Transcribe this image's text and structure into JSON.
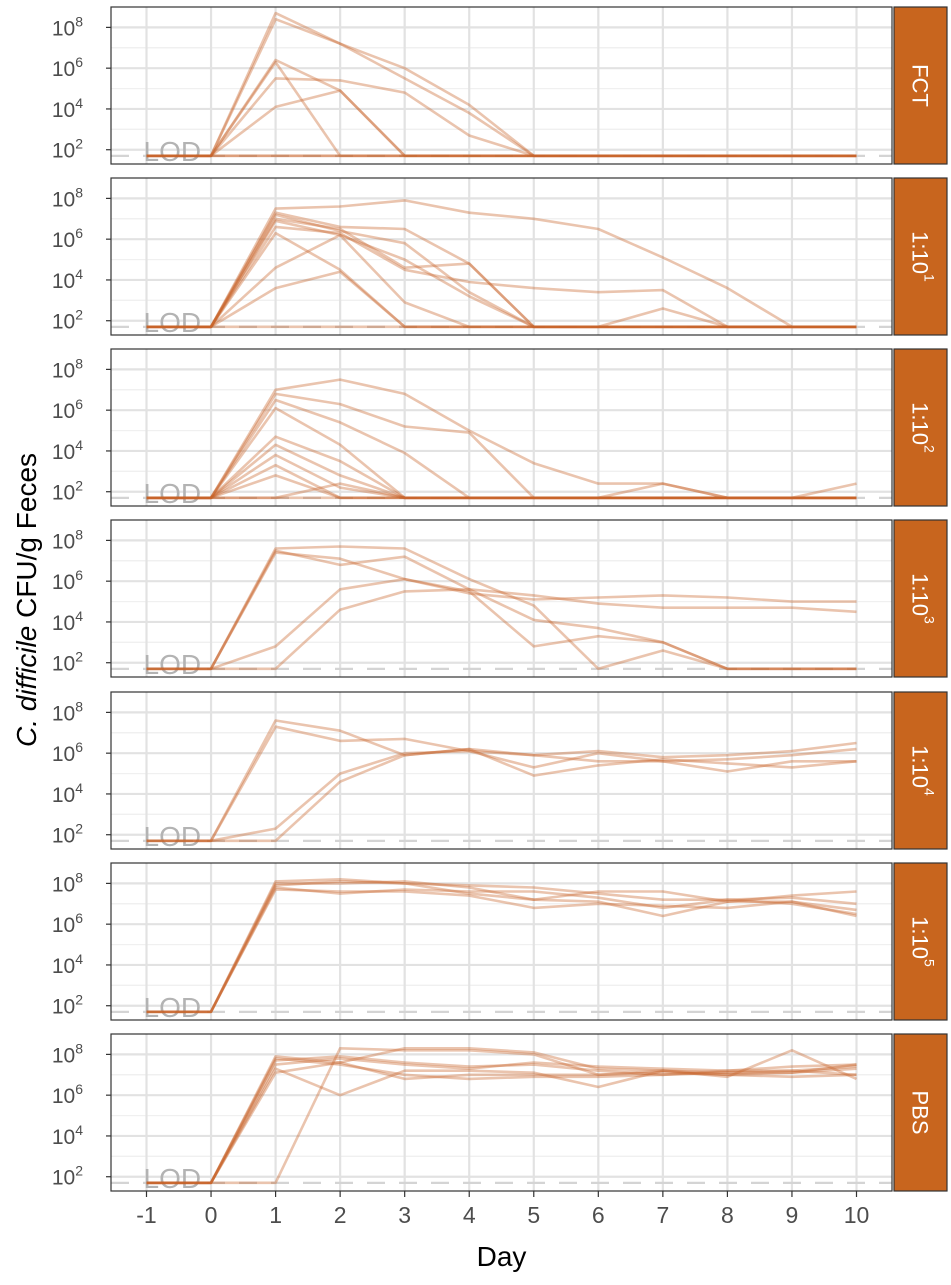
{
  "chart_data": {
    "type": "line",
    "ylabel_italic": "C. difficile",
    "ylabel_rest": "CFU/g Feces",
    "xlabel": "Day",
    "x_ticks": [
      -1,
      0,
      1,
      2,
      3,
      4,
      5,
      6,
      7,
      8,
      9,
      10
    ],
    "x_tick_labels": [
      "-1",
      "0",
      "1",
      "2",
      "3",
      "4",
      "5",
      "6",
      "7",
      "8",
      "9",
      "10"
    ],
    "xlim": [
      -1.55,
      10.55
    ],
    "y_scale": "log10",
    "ylim_log10": [
      1.3,
      9.0
    ],
    "y_ticks_log10": [
      2,
      4,
      6,
      8
    ],
    "y_tick_base": "10",
    "y_tick_exponents": [
      "2",
      "4",
      "6",
      "8"
    ],
    "lod_label": "LOD",
    "lod_log10": 1.7,
    "line_color": "#C8652A",
    "strip_color": "#C8651E",
    "panels": [
      {
        "label_base": "FCT",
        "label_sup": "",
        "series": [
          [
            1.7,
            1.7,
            8.7,
            7.2,
            6.0,
            4.2,
            1.7,
            1.7,
            1.7,
            1.7,
            1.7,
            1.7
          ],
          [
            1.7,
            1.7,
            8.4,
            7.2,
            5.5,
            3.8,
            1.7,
            1.7,
            1.7,
            1.7,
            1.7,
            1.7
          ],
          [
            1.7,
            1.7,
            6.4,
            4.9,
            1.7,
            1.7,
            1.7,
            1.7,
            1.7,
            1.7,
            1.7,
            1.7
          ],
          [
            1.7,
            1.7,
            6.3,
            1.7,
            1.7,
            1.7,
            1.7,
            1.7,
            1.7,
            1.7,
            1.7,
            1.7
          ],
          [
            1.7,
            1.7,
            5.5,
            5.4,
            4.8,
            2.7,
            1.7,
            1.7,
            1.7,
            1.7,
            1.7,
            1.7
          ],
          [
            1.7,
            1.7,
            4.1,
            4.9,
            1.7,
            1.7,
            1.7,
            1.7,
            1.7,
            1.7,
            1.7,
            1.7
          ],
          [
            1.7,
            1.7,
            1.7,
            1.7,
            1.7,
            1.7,
            1.7,
            1.7,
            1.7,
            1.7,
            1.7,
            1.7
          ],
          [
            1.7,
            1.7,
            1.7,
            1.7,
            1.7,
            1.7,
            1.7,
            1.7,
            1.7,
            1.7,
            1.7,
            1.7
          ]
        ]
      },
      {
        "label_base": "1:10",
        "label_sup": "1",
        "series": [
          [
            1.7,
            1.7,
            7.5,
            7.6,
            7.9,
            7.3,
            7.0,
            6.5,
            5.1,
            3.6,
            1.7,
            1.7
          ],
          [
            1.7,
            1.7,
            7.3,
            6.6,
            6.5,
            4.8,
            1.7,
            1.7,
            1.7,
            1.7,
            1.7,
            1.7
          ],
          [
            1.7,
            1.7,
            7.2,
            6.4,
            5.8,
            3.4,
            1.7,
            1.7,
            1.7,
            1.7,
            1.7,
            1.7
          ],
          [
            1.7,
            1.7,
            7.0,
            6.5,
            4.6,
            4.8,
            1.7,
            1.7,
            1.7,
            1.7,
            1.7,
            1.7
          ],
          [
            1.7,
            1.7,
            6.9,
            6.2,
            5.0,
            3.2,
            1.7,
            1.7,
            1.7,
            1.7,
            1.7,
            1.7
          ],
          [
            1.7,
            1.7,
            6.6,
            6.3,
            4.5,
            3.9,
            3.6,
            3.4,
            3.5,
            1.7,
            1.7,
            1.7
          ],
          [
            1.7,
            1.7,
            6.3,
            4.5,
            1.7,
            1.7,
            1.7,
            1.7,
            2.6,
            1.7,
            1.7,
            1.7
          ],
          [
            1.7,
            1.7,
            4.6,
            6.2,
            2.9,
            1.7,
            1.7,
            1.7,
            1.7,
            1.7,
            1.7,
            1.7
          ],
          [
            1.7,
            1.7,
            3.6,
            4.4,
            1.7,
            1.7,
            1.7,
            1.7,
            1.7,
            1.7,
            1.7,
            1.7
          ],
          [
            1.7,
            1.7,
            1.7,
            1.7,
            1.7,
            1.7,
            1.7,
            1.7,
            1.7,
            1.7,
            1.7,
            1.7
          ]
        ]
      },
      {
        "label_base": "1:10",
        "label_sup": "2",
        "series": [
          [
            1.7,
            1.7,
            7.0,
            7.5,
            6.8,
            5.0,
            3.4,
            2.4,
            2.4,
            1.7,
            1.7,
            2.4
          ],
          [
            1.7,
            1.7,
            6.8,
            6.3,
            5.2,
            4.9,
            1.7,
            1.7,
            1.7,
            1.7,
            1.7,
            1.7
          ],
          [
            1.7,
            1.7,
            6.5,
            5.4,
            3.9,
            1.7,
            1.7,
            1.7,
            1.7,
            1.7,
            1.7,
            1.7
          ],
          [
            1.7,
            1.7,
            6.1,
            4.3,
            1.7,
            1.7,
            1.7,
            1.7,
            1.7,
            1.7,
            1.7,
            1.7
          ],
          [
            1.7,
            1.7,
            4.7,
            3.5,
            1.7,
            1.7,
            1.7,
            1.7,
            1.7,
            1.7,
            1.7,
            1.7
          ],
          [
            1.7,
            1.7,
            4.3,
            2.8,
            1.7,
            1.7,
            1.7,
            1.7,
            1.7,
            1.7,
            1.7,
            1.7
          ],
          [
            1.7,
            1.7,
            3.8,
            2.2,
            1.7,
            1.7,
            1.7,
            1.7,
            1.7,
            1.7,
            1.7,
            1.7
          ],
          [
            1.7,
            1.7,
            3.3,
            1.7,
            1.7,
            1.7,
            1.7,
            1.7,
            1.7,
            1.7,
            1.7,
            1.7
          ],
          [
            1.7,
            1.7,
            2.8,
            1.7,
            1.7,
            1.7,
            1.7,
            1.7,
            1.7,
            1.7,
            1.7,
            1.7
          ],
          [
            1.7,
            1.7,
            1.7,
            2.4,
            1.7,
            1.7,
            1.7,
            1.7,
            2.4,
            1.7,
            1.7,
            1.7
          ],
          [
            1.7,
            1.7,
            1.7,
            1.7,
            1.7,
            1.7,
            1.7,
            1.7,
            1.7,
            1.7,
            1.7,
            1.7
          ]
        ]
      },
      {
        "label_base": "1:10",
        "label_sup": "3",
        "series": [
          [
            1.7,
            1.7,
            7.6,
            7.7,
            7.6,
            6.1,
            4.8,
            1.7,
            2.6,
            1.7,
            1.7,
            1.7
          ],
          [
            1.7,
            1.7,
            7.5,
            6.8,
            7.2,
            5.6,
            4.1,
            3.7,
            3.0,
            1.7,
            1.7,
            1.7
          ],
          [
            1.7,
            1.7,
            7.4,
            7.1,
            6.1,
            5.5,
            2.8,
            3.3,
            3.0,
            1.7,
            1.7,
            1.7
          ],
          [
            1.7,
            1.7,
            2.8,
            5.6,
            6.1,
            5.4,
            5.1,
            5.2,
            5.3,
            5.2,
            5.0,
            5.0
          ],
          [
            1.7,
            1.7,
            1.7,
            4.6,
            5.5,
            5.6,
            5.3,
            4.9,
            4.7,
            4.7,
            4.7,
            4.5
          ]
        ]
      },
      {
        "label_base": "1:10",
        "label_sup": "4",
        "series": [
          [
            1.7,
            1.7,
            7.6,
            7.1,
            5.9,
            6.2,
            5.9,
            6.1,
            5.8,
            5.9,
            6.1,
            6.5
          ],
          [
            1.7,
            1.7,
            7.3,
            6.6,
            6.7,
            6.1,
            5.3,
            6.0,
            5.6,
            5.7,
            5.9,
            6.2
          ],
          [
            1.7,
            1.7,
            2.3,
            5.0,
            6.0,
            6.1,
            5.9,
            5.6,
            5.6,
            5.1,
            5.6,
            5.6
          ],
          [
            1.7,
            1.7,
            1.7,
            4.6,
            5.9,
            6.2,
            4.9,
            5.4,
            5.7,
            5.5,
            5.3,
            5.6
          ]
        ]
      },
      {
        "label_base": "1:10",
        "label_sup": "5",
        "series": [
          [
            1.7,
            1.7,
            8.1,
            8.2,
            8.0,
            7.9,
            7.8,
            7.5,
            7.2,
            7.2,
            7.3,
            7.0
          ],
          [
            1.7,
            1.7,
            8.0,
            8.0,
            8.1,
            7.8,
            7.2,
            7.6,
            7.6,
            7.1,
            7.4,
            7.6
          ],
          [
            1.7,
            1.7,
            7.8,
            7.5,
            7.7,
            7.6,
            7.6,
            7.3,
            6.8,
            7.2,
            7.0,
            6.5
          ],
          [
            1.7,
            1.7,
            7.7,
            7.6,
            7.6,
            7.4,
            6.8,
            7.0,
            6.9,
            6.8,
            7.1,
            6.7
          ],
          [
            1.7,
            1.7,
            7.9,
            8.1,
            8.0,
            7.5,
            7.2,
            7.1,
            6.4,
            7.1,
            7.1,
            6.4
          ]
        ]
      },
      {
        "label_base": "PBS",
        "label_sup": "",
        "series": [
          [
            1.7,
            1.7,
            7.9,
            7.6,
            8.3,
            8.3,
            8.1,
            7.3,
            7.2,
            7.1,
            7.1,
            7.5
          ],
          [
            1.7,
            1.7,
            7.7,
            7.9,
            7.6,
            7.4,
            7.5,
            7.2,
            7.0,
            7.1,
            7.2,
            7.4
          ],
          [
            1.7,
            1.7,
            7.5,
            7.8,
            7.5,
            7.3,
            7.6,
            7.4,
            7.3,
            7.2,
            7.2,
            7.0
          ],
          [
            1.7,
            1.7,
            7.3,
            6.0,
            7.2,
            7.2,
            7.1,
            6.4,
            7.2,
            6.9,
            8.2,
            6.8
          ],
          [
            1.7,
            1.7,
            7.8,
            7.5,
            7.0,
            6.8,
            6.9,
            6.9,
            7.0,
            7.2,
            7.4,
            7.5
          ],
          [
            1.7,
            1.7,
            7.1,
            7.6,
            6.8,
            7.0,
            7.0,
            7.0,
            7.2,
            7.0,
            6.9,
            7.0
          ],
          [
            1.7,
            1.7,
            1.7,
            8.3,
            8.2,
            8.2,
            8.0,
            7.0,
            7.1,
            7.0,
            7.1,
            7.3
          ]
        ]
      }
    ]
  }
}
